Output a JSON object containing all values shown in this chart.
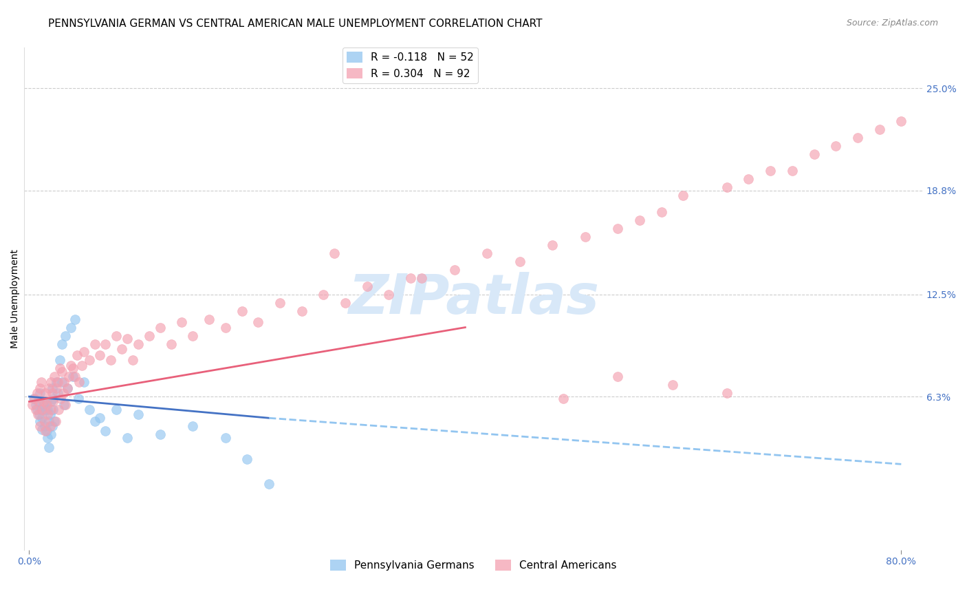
{
  "title": "PENNSYLVANIA GERMAN VS CENTRAL AMERICAN MALE UNEMPLOYMENT CORRELATION CHART",
  "source": "Source: ZipAtlas.com",
  "ylabel": "Male Unemployment",
  "ytick_labels": [
    "25.0%",
    "18.8%",
    "12.5%",
    "6.3%"
  ],
  "ytick_values": [
    0.25,
    0.188,
    0.125,
    0.063
  ],
  "ymin": -0.03,
  "ymax": 0.275,
  "xmin": -0.005,
  "xmax": 0.82,
  "pa_german_color": "#92C5F0",
  "ca_color": "#F4A0B0",
  "trendline_pa_solid_color": "#4472C4",
  "trendline_pa_dash_color": "#92C5F0",
  "trendline_ca_color": "#E8607A",
  "background_color": "#FFFFFF",
  "grid_color": "#CCCCCC",
  "watermark_color": "#D8E8F8",
  "title_fontsize": 11,
  "axis_label_fontsize": 10,
  "tick_label_fontsize": 10,
  "source_fontsize": 9,
  "legend_r_pa": "R = -0.118",
  "legend_n_pa": "N = 52",
  "legend_r_ca": "R = 0.304",
  "legend_n_ca": "N = 92",
  "pa_german_x": [
    0.004,
    0.006,
    0.007,
    0.008,
    0.009,
    0.01,
    0.01,
    0.011,
    0.012,
    0.012,
    0.013,
    0.014,
    0.015,
    0.016,
    0.016,
    0.017,
    0.017,
    0.018,
    0.018,
    0.019,
    0.02,
    0.02,
    0.021,
    0.021,
    0.022,
    0.022,
    0.023,
    0.025,
    0.026,
    0.028,
    0.03,
    0.03,
    0.032,
    0.033,
    0.035,
    0.038,
    0.04,
    0.042,
    0.045,
    0.05,
    0.055,
    0.06,
    0.065,
    0.07,
    0.08,
    0.09,
    0.1,
    0.12,
    0.15,
    0.18,
    0.2,
    0.22
  ],
  "pa_german_y": [
    0.062,
    0.058,
    0.055,
    0.06,
    0.052,
    0.065,
    0.048,
    0.055,
    0.05,
    0.043,
    0.058,
    0.045,
    0.055,
    0.06,
    0.042,
    0.055,
    0.038,
    0.048,
    0.032,
    0.052,
    0.06,
    0.04,
    0.068,
    0.045,
    0.055,
    0.062,
    0.048,
    0.072,
    0.065,
    0.085,
    0.072,
    0.095,
    0.058,
    0.1,
    0.068,
    0.105,
    0.075,
    0.11,
    0.062,
    0.072,
    0.055,
    0.048,
    0.05,
    0.042,
    0.055,
    0.038,
    0.052,
    0.04,
    0.045,
    0.038,
    0.025,
    0.01
  ],
  "ca_x": [
    0.003,
    0.005,
    0.006,
    0.007,
    0.008,
    0.009,
    0.01,
    0.01,
    0.011,
    0.012,
    0.013,
    0.014,
    0.015,
    0.015,
    0.016,
    0.017,
    0.018,
    0.019,
    0.02,
    0.02,
    0.021,
    0.022,
    0.023,
    0.024,
    0.025,
    0.026,
    0.027,
    0.028,
    0.029,
    0.03,
    0.031,
    0.032,
    0.033,
    0.035,
    0.036,
    0.038,
    0.04,
    0.042,
    0.044,
    0.046,
    0.048,
    0.05,
    0.055,
    0.06,
    0.065,
    0.07,
    0.075,
    0.08,
    0.085,
    0.09,
    0.095,
    0.1,
    0.11,
    0.12,
    0.13,
    0.14,
    0.15,
    0.165,
    0.18,
    0.195,
    0.21,
    0.23,
    0.25,
    0.27,
    0.29,
    0.31,
    0.33,
    0.36,
    0.39,
    0.42,
    0.45,
    0.48,
    0.51,
    0.54,
    0.56,
    0.58,
    0.6,
    0.64,
    0.66,
    0.68,
    0.7,
    0.72,
    0.74,
    0.76,
    0.78,
    0.8,
    0.64,
    0.59,
    0.54,
    0.49,
    0.35,
    0.28
  ],
  "ca_y": [
    0.058,
    0.062,
    0.055,
    0.065,
    0.052,
    0.06,
    0.068,
    0.045,
    0.072,
    0.055,
    0.06,
    0.048,
    0.065,
    0.042,
    0.058,
    0.052,
    0.068,
    0.045,
    0.072,
    0.055,
    0.065,
    0.06,
    0.075,
    0.048,
    0.068,
    0.072,
    0.055,
    0.08,
    0.062,
    0.078,
    0.065,
    0.072,
    0.058,
    0.068,
    0.075,
    0.082,
    0.08,
    0.075,
    0.088,
    0.072,
    0.082,
    0.09,
    0.085,
    0.095,
    0.088,
    0.095,
    0.085,
    0.1,
    0.092,
    0.098,
    0.085,
    0.095,
    0.1,
    0.105,
    0.095,
    0.108,
    0.1,
    0.11,
    0.105,
    0.115,
    0.108,
    0.12,
    0.115,
    0.125,
    0.12,
    0.13,
    0.125,
    0.135,
    0.14,
    0.15,
    0.145,
    0.155,
    0.16,
    0.165,
    0.17,
    0.175,
    0.185,
    0.19,
    0.195,
    0.2,
    0.2,
    0.21,
    0.215,
    0.22,
    0.225,
    0.23,
    0.065,
    0.07,
    0.075,
    0.062,
    0.135,
    0.15
  ]
}
